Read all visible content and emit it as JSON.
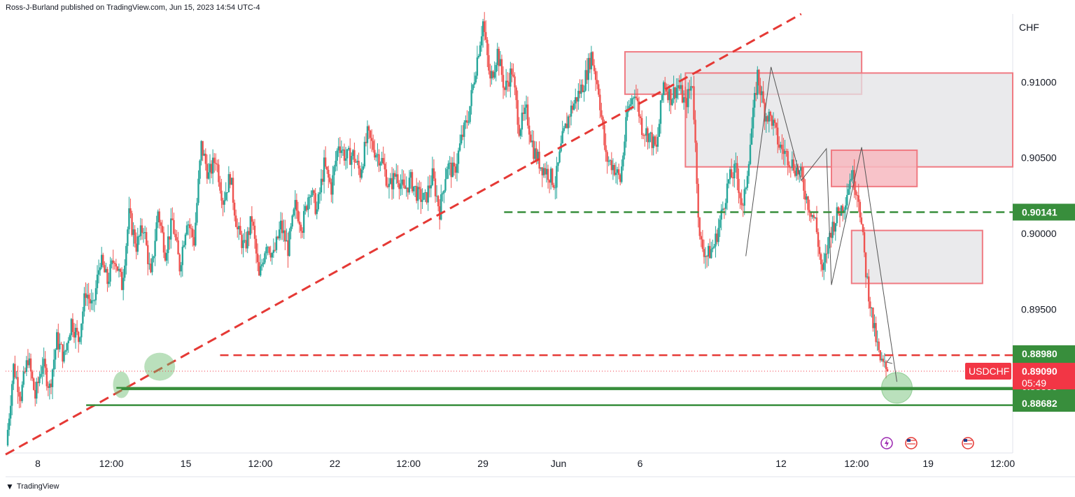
{
  "header": {
    "published_by": "Ross-J-Burland published on TradingView.com, Jun 15, 2023 14:54 UTC-4"
  },
  "footer": {
    "brand_logo": "tradingview-logo-icon",
    "brand": "TradingView"
  },
  "colors": {
    "bull": "#26a69a",
    "bear": "#ef5350",
    "resistance": "#e53935",
    "support": "#388e3c",
    "zone_fill": "#e3e3e6",
    "zone_border": "#f07a82",
    "red_zone_fill": "#f7b9bf",
    "price_tag": "#f23645"
  },
  "chart_data": {
    "type": "candlestick",
    "symbol": "USDCHF",
    "currency": "CHF",
    "x_ticks": [
      "8",
      "12:00",
      "15",
      "12:00",
      "22",
      "12:00",
      "29",
      "Jun",
      "6",
      "12",
      "12:00",
      "19",
      "12:00"
    ],
    "y_ticks": [
      "0.91000",
      "0.90500",
      "0.90000",
      "0.89500"
    ],
    "ylim": [
      0.8855,
      0.9145
    ],
    "last_price": {
      "label": "USDCHF",
      "value": "0.89090",
      "countdown": "05:49"
    },
    "price_levels": [
      {
        "value": "0.90141",
        "style": "dashed",
        "color": "green"
      },
      {
        "value": "0.89196",
        "style": "dashed",
        "color": "red"
      },
      {
        "value": "0.88980",
        "style": "solid",
        "color": "green"
      },
      {
        "value": "0.88971",
        "style": "solid",
        "color": "green"
      },
      {
        "value": "0.88866",
        "style": "solid",
        "color": "green"
      },
      {
        "value": "0.88682",
        "style": "label-only",
        "color": "green"
      }
    ],
    "path_points": [
      0.886,
      0.8912,
      0.8893,
      0.8918,
      0.8892,
      0.8915,
      0.8898,
      0.893,
      0.8918,
      0.8942,
      0.893,
      0.8962,
      0.895,
      0.8983,
      0.8968,
      0.8985,
      0.8966,
      0.9012,
      0.8992,
      0.9005,
      0.897,
      0.9015,
      0.8988,
      0.9008,
      0.8978,
      0.901,
      0.8995,
      0.9058,
      0.9038,
      0.905,
      0.9022,
      0.9038,
      0.9002,
      0.899,
      0.901,
      0.897,
      0.8995,
      0.8985,
      0.9005,
      0.899,
      0.9018,
      0.9005,
      0.903,
      0.9015,
      0.9045,
      0.903,
      0.906,
      0.905,
      0.9052,
      0.904,
      0.9065,
      0.9055,
      0.9048,
      0.903,
      0.904,
      0.9028,
      0.9035,
      0.9025,
      0.9022,
      0.9038,
      0.9015,
      0.9045,
      0.904,
      0.9062,
      0.9078,
      0.911,
      0.914,
      0.91,
      0.912,
      0.9095,
      0.9108,
      0.907,
      0.908,
      0.9055,
      0.9045,
      0.904,
      0.9033,
      0.9062,
      0.908,
      0.909,
      0.91,
      0.9118,
      0.9095,
      0.905,
      0.9045,
      0.9035,
      0.908,
      0.9095,
      0.907,
      0.9065,
      0.9055,
      0.91,
      0.909,
      0.9098,
      0.9085,
      0.91,
      0.8995,
      0.8985,
      0.8992,
      0.9012,
      0.9035,
      0.9042,
      0.9015,
      0.906,
      0.9105,
      0.908,
      0.9075,
      0.9058,
      0.9052,
      0.9045,
      0.9038,
      0.902,
      0.9008,
      0.8972,
      0.9,
      0.9012,
      0.902,
      0.904,
      0.9025,
      0.8975,
      0.894,
      0.8915,
      0.8909
    ],
    "annotations": [
      {
        "type": "trendline",
        "style": "dashed",
        "color": "red",
        "from": {
          "time_frac": 0.0,
          "price": 0.8854
        },
        "to": {
          "time_frac": 0.79,
          "price": 0.9145
        }
      },
      {
        "type": "zone",
        "color": "grey",
        "from": {
          "time_frac": 0.615,
          "price": 0.912
        },
        "to": {
          "time_frac": 0.85,
          "price": 0.9092
        }
      },
      {
        "type": "zone",
        "color": "grey",
        "from": {
          "time_frac": 0.675,
          "price": 0.9106
        },
        "to": {
          "time_frac": 1.0,
          "price": 0.9044
        }
      },
      {
        "type": "zone",
        "color": "red",
        "from": {
          "time_frac": 0.82,
          "price": 0.9055
        },
        "to": {
          "time_frac": 0.905,
          "price": 0.9031
        }
      },
      {
        "type": "zone",
        "color": "grey",
        "from": {
          "time_frac": 0.84,
          "price": 0.9002
        },
        "to": {
          "time_frac": 0.97,
          "price": 0.8967
        }
      },
      {
        "type": "highlight",
        "color": "green",
        "shape": "ellipse",
        "at": {
          "time_frac": 0.115,
          "price": 0.89
        }
      },
      {
        "type": "highlight",
        "color": "green",
        "shape": "ellipse",
        "at": {
          "time_frac": 0.153,
          "price": 0.8912
        }
      },
      {
        "type": "highlight",
        "color": "green",
        "shape": "circle",
        "at": {
          "time_frac": 0.885,
          "price": 0.8898
        }
      },
      {
        "type": "zigzag",
        "color": "grey",
        "points": [
          {
            "time_frac": 0.735,
            "price": 0.8985
          },
          {
            "time_frac": 0.76,
            "price": 0.911
          },
          {
            "time_frac": 0.79,
            "price": 0.9035
          },
          {
            "time_frac": 0.815,
            "price": 0.9056
          },
          {
            "time_frac": 0.82,
            "price": 0.8966
          },
          {
            "time_frac": 0.85,
            "price": 0.9057
          },
          {
            "time_frac": 0.885,
            "price": 0.8902
          }
        ]
      }
    ],
    "bottom_icons": [
      "lightning-icon",
      "us-flag-icon",
      "us-flag-icon"
    ]
  }
}
